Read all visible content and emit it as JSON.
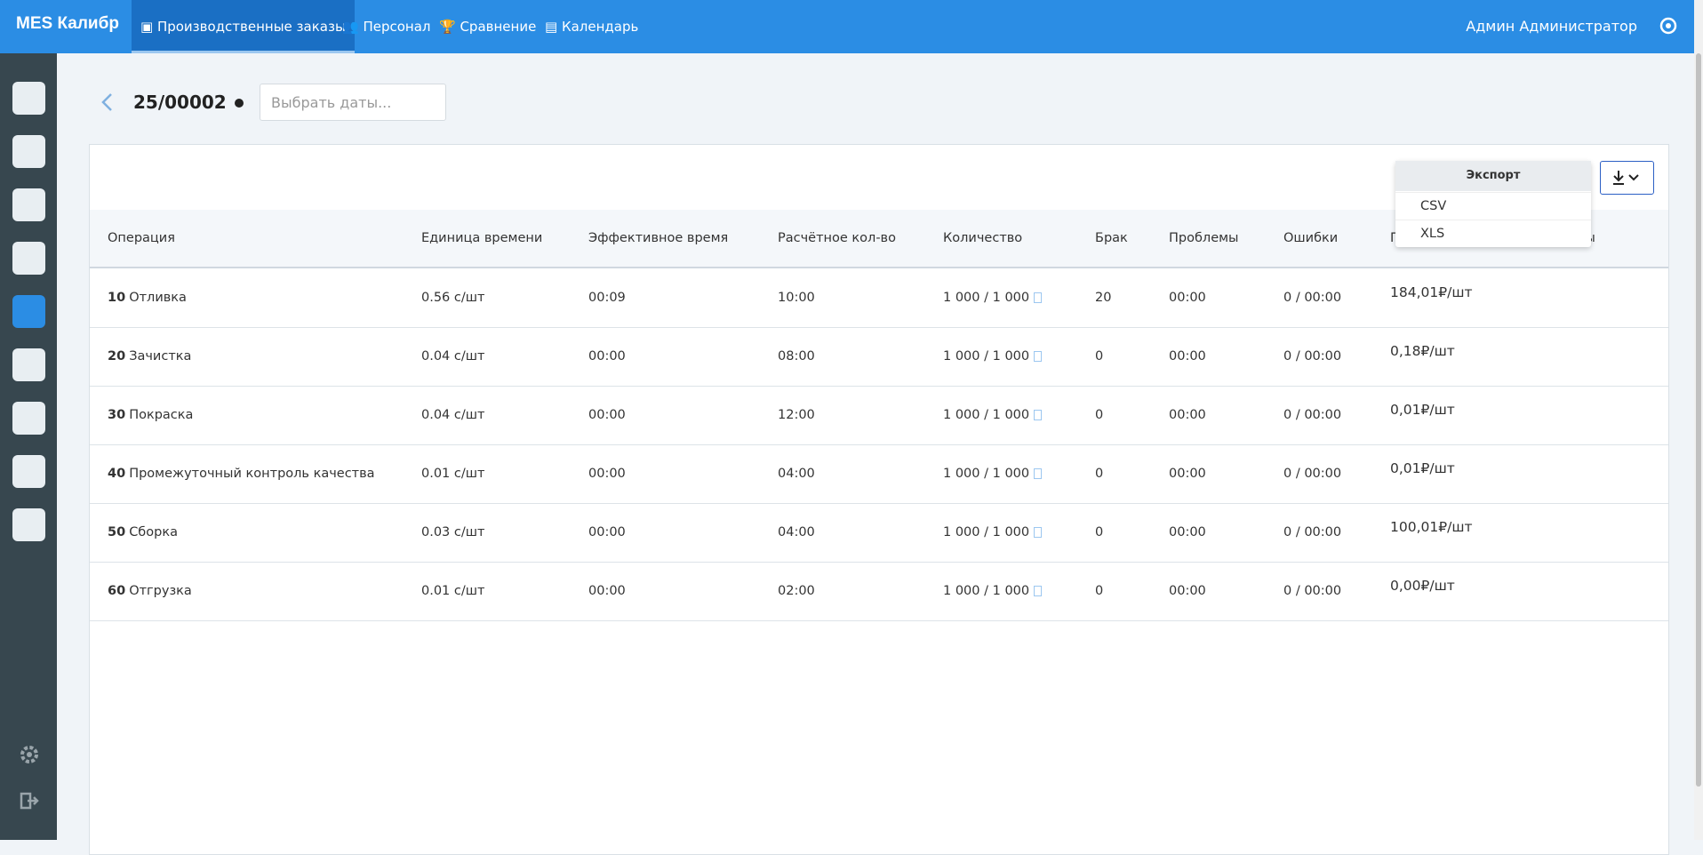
{
  "topbar": {
    "brand": "MES Калибр",
    "nav": [
      "Производственные заказы",
      "Персонал",
      "Сравнение",
      "Календарь"
    ],
    "user": "Админ Администратор"
  },
  "order": {
    "title": "25/00002",
    "date_placeholder": "Выбрать даты..."
  },
  "export_menu": {
    "title": "Экспорт",
    "items": [
      "CSV",
      "XLS"
    ]
  },
  "table": {
    "headers": [
      "Операция",
      "Единица времени",
      "Эффективное время",
      "Расчётное кол-во",
      "Количество",
      "Брак",
      "Проблемы",
      "Ошибки",
      "Плановая стоимость единицы"
    ],
    "rows": [
      [
        "10",
        "Отливка",
        "0.56 с/шт",
        "00:09",
        "10:00",
        "1 000 / 1 000",
        "20",
        "00:00",
        "0 / 00:00",
        "184,01₽/шт"
      ],
      [
        "20",
        "Зачистка",
        "0.04 с/шт",
        "00:00",
        "08:00",
        "1 000 / 1 000",
        "0",
        "00:00",
        "0 / 00:00",
        "0,18₽/шт"
      ],
      [
        "30",
        "Покраска",
        "0.04 с/шт",
        "00:00",
        "12:00",
        "1 000 / 1 000",
        "0",
        "00:00",
        "0 / 00:00",
        "0,01₽/шт"
      ],
      [
        "40",
        "Промежуточный контроль качества",
        "0.01 с/шт",
        "00:00",
        "04:00",
        "1 000 / 1 000",
        "0",
        "00:00",
        "0 / 00:00",
        "0,01₽/шт"
      ],
      [
        "50",
        "Сборка",
        "0.03 с/шт",
        "00:00",
        "04:00",
        "1 000 / 1 000",
        "0",
        "00:00",
        "0 / 00:00",
        "100,01₽/шт"
      ],
      [
        "60",
        "Отгрузка",
        "0.01 с/шт",
        "00:00",
        "02:00",
        "1 000 / 1 000",
        "0",
        "00:00",
        "0 / 00:00",
        "0,00₽/шт"
      ]
    ]
  }
}
